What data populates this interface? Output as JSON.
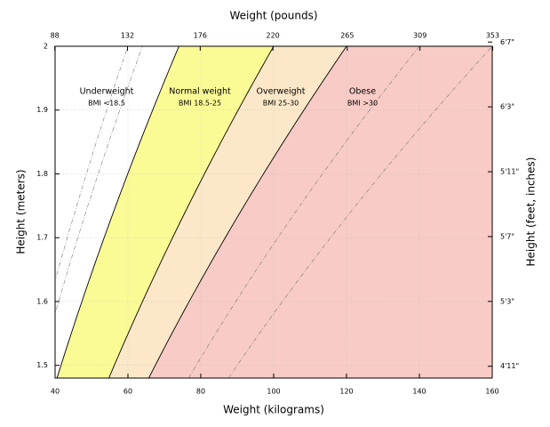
{
  "chart_data": {
    "type": "bmi",
    "x_label": "Weight (kilograms)",
    "x2_label": "Weight (pounds)",
    "y_label": "Height (meters)",
    "y2_label": "Height (feet, inches)",
    "xlim": [
      40,
      160
    ],
    "xticks": [
      40,
      60,
      80,
      100,
      120,
      140,
      160
    ],
    "x2lim": [
      88.18,
      352.74
    ],
    "x2ticks": [
      88,
      132,
      176,
      220,
      265,
      309,
      353
    ],
    "ylim": [
      1.48,
      2.0
    ],
    "yticks": [
      {
        "value": 1.5,
        "label": "1.5"
      },
      1.6,
      1.7,
      1.8,
      1.9,
      {
        "value": 2,
        "label": "2"
      }
    ],
    "y2lim": [
      58.27,
      78.74
    ],
    "y2ticks": [
      {
        "value": 59,
        "label": "4'11\""
      },
      {
        "value": 63,
        "label": "5'3\""
      },
      {
        "value": 67,
        "label": "5'7\""
      },
      {
        "value": 71,
        "label": "5'11\""
      },
      {
        "value": 75,
        "label": "6'3\""
      },
      {
        "value": 79,
        "label": "6'7\""
      }
    ],
    "grid": true,
    "boundaries": [
      18.5,
      25,
      30
    ],
    "reference_lines": [
      15,
      16,
      35,
      40
    ],
    "series": [
      {
        "name": "Underweight",
        "label": "BMI <18.5",
        "color": "#ffffff"
      },
      {
        "name": "Normal weight",
        "label": "BMI 18.5-25",
        "color": "#fbfb96"
      },
      {
        "name": "Overweight",
        "label": "BMI 25-30",
        "color": "#fce8c8"
      },
      {
        "name": "Obese",
        "label": "BMI >30",
        "color": "#f8cbc6"
      }
    ]
  }
}
